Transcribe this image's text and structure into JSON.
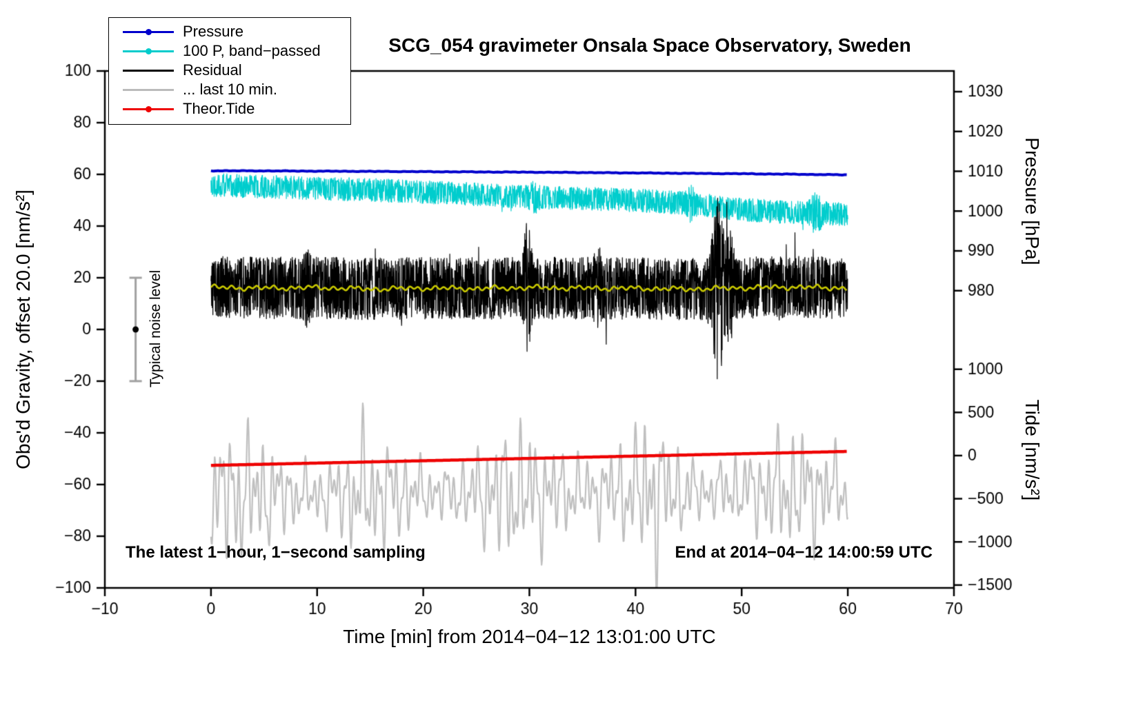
{
  "chart_data": {
    "type": "line",
    "title": "SCG_054 gravimeter Onsala Space Observatory, Sweden",
    "xlabel": "Time [min] from 2014−04−12 13:01:00 UTC",
    "ylabel_left": "Obs'd Gravity, offset 20.0 [nm/s²]",
    "xlim": [
      -10,
      70
    ],
    "ylim_left": [
      -100,
      100
    ],
    "x_ticks": [
      -10,
      0,
      10,
      20,
      30,
      40,
      50,
      60,
      70
    ],
    "y_ticks_left": [
      -100,
      -80,
      -60,
      -40,
      -20,
      0,
      20,
      40,
      60,
      80,
      100
    ],
    "pressure_axis": {
      "label": "Pressure [hPa]",
      "ticks": [
        1030,
        1020,
        1010,
        1000,
        990,
        980
      ],
      "ref_value": 1010,
      "ref_left_pos": 61.2,
      "units_per_hpa": 1.54
    },
    "tide_axis": {
      "label": "Tide [nm/s²]",
      "ticks": [
        1000,
        500,
        0,
        -500,
        -1000,
        -1500
      ],
      "ref_value": 0,
      "ref_left_pos": -48.8,
      "units_per_nms2": 0.0334
    },
    "annotations": {
      "sampling_note": "The latest 1−hour, 1−second sampling",
      "end_note": "End at 2014−04−12 14:00:59 UTC"
    },
    "noise_bar": {
      "x": -7.1,
      "center": 0,
      "half_height": 20,
      "label": "Typical noise level"
    },
    "legend": [
      {
        "label": "Pressure",
        "color": "#0000cc",
        "marker": "dot-line"
      },
      {
        "label": "100 P, band−passed",
        "color": "#00cccc",
        "marker": "dot-line"
      },
      {
        "label": "Residual",
        "color": "#000000",
        "marker": "line"
      },
      {
        "label": "... last 10 min.",
        "color": "#bbbbbb",
        "marker": "line"
      },
      {
        "label": "Theor.Tide",
        "color": "#ee0000",
        "marker": "dot-line"
      }
    ],
    "series": [
      {
        "name": "100 P, band−passed",
        "color": "#00cdcd",
        "width": 1.2,
        "render": "noisy",
        "seed": 22,
        "dt": 0.025,
        "noise_amp": 4.5,
        "x": [
          0,
          5,
          10,
          15,
          20,
          25,
          30,
          35,
          40,
          45,
          50,
          55,
          60
        ],
        "y": [
          56,
          55.2,
          54.6,
          54,
          53.2,
          52.2,
          51.2,
          50.6,
          50,
          48.8,
          46.4,
          45.2,
          44.6
        ],
        "events": [
          {
            "x": 45.2,
            "amp": 0.7,
            "width": 0.35
          },
          {
            "x": 57.0,
            "amp": 0.9,
            "width": 0.5
          },
          {
            "x": 30.5,
            "amp": 0.5,
            "width": 0.4
          }
        ]
      },
      {
        "name": "Residual",
        "color": "#000000",
        "width": 1.2,
        "render": "noisy",
        "seed": 33,
        "dt": 0.02,
        "noise_amp": 12,
        "x": [
          0,
          5,
          10,
          15,
          20,
          25,
          30,
          35,
          40,
          45,
          50,
          55,
          60
        ],
        "y": [
          16.3,
          16,
          16.2,
          15.6,
          16,
          15.8,
          16.2,
          16,
          15.9,
          15.6,
          16.1,
          16.4,
          16
        ],
        "events": [
          {
            "x": 29.8,
            "amp": 1.2,
            "width": 0.35
          },
          {
            "x": 47.8,
            "amp": 2.0,
            "width": 0.6
          },
          {
            "x": 48.9,
            "amp": 0.9,
            "width": 0.35
          },
          {
            "x": 36.5,
            "amp": 0.35,
            "width": 0.4
          },
          {
            "x": 9.0,
            "amp": 0.3,
            "width": 0.3
          }
        ]
      },
      {
        "name": "Residual smoothed",
        "color": "#c8c800",
        "width": 2.6,
        "render": "smooth",
        "seed": 44,
        "jitter": 1.1,
        "x": [
          0,
          5,
          10,
          15,
          20,
          25,
          30,
          35,
          40,
          45,
          50,
          55,
          60
        ],
        "y": [
          16.3,
          16,
          16.2,
          15.6,
          16,
          15.8,
          16.2,
          16,
          15.9,
          15.6,
          16.1,
          16.4,
          16
        ]
      },
      {
        "name": "... last 10 min.",
        "color": "#bfbfbf",
        "width": 2.2,
        "render": "osc",
        "seed": 55,
        "dt": 0.05,
        "noise_amp": 20,
        "x": [
          0,
          5,
          10,
          15,
          20,
          25,
          30,
          35,
          40,
          45,
          50,
          55,
          60
        ],
        "y": [
          -64,
          -63.5,
          -64,
          -63.5,
          -63,
          -63.5,
          -63,
          -63,
          -62.5,
          -63,
          -62,
          -62.5,
          -62
        ],
        "events": [
          {
            "x": 41.6,
            "amp": 0.55,
            "width": 1.0
          },
          {
            "x": 48.8,
            "amp": 0.5,
            "width": 1.2
          },
          {
            "x": 14.0,
            "amp": 0.3,
            "width": 1.0
          }
        ]
      },
      {
        "name": "Theor.Tide",
        "color": "#ee0000",
        "width": 4.5,
        "render": "smooth",
        "seed": 66,
        "jitter": 0,
        "x": [
          0,
          5,
          10,
          15,
          20,
          25,
          30,
          35,
          40,
          45,
          50,
          55,
          60
        ],
        "y": [
          -52.6,
          -52.15,
          -51.7,
          -51.25,
          -50.8,
          -50.35,
          -49.9,
          -49.45,
          -49.0,
          -48.55,
          -48.1,
          -47.65,
          -47.2
        ]
      },
      {
        "name": "Pressure",
        "color": "#0000cc",
        "width": 4,
        "render": "smooth",
        "seed": 11,
        "jitter": 0.12,
        "x": [
          0,
          5,
          10,
          15,
          20,
          25,
          30,
          35,
          40,
          45,
          50,
          55,
          60
        ],
        "y": [
          61.4,
          61.35,
          61.25,
          61.15,
          61.05,
          60.95,
          60.85,
          60.7,
          60.55,
          60.4,
          60.25,
          60.05,
          59.8
        ]
      }
    ]
  }
}
